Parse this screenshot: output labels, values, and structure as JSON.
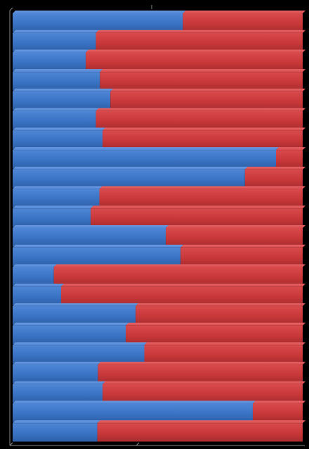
{
  "chart_data": {
    "type": "bar",
    "orientation": "horizontal",
    "stacked": "100%",
    "title": "",
    "xlabel": "",
    "ylabel": "",
    "xlim": [
      0,
      100
    ],
    "grid": false,
    "legend": "none",
    "series": [
      {
        "color": "#3a73c4",
        "values": [
          58.7,
          28.7,
          25.2,
          30.1,
          33.7,
          28.7,
          31.0,
          90.8,
          80.1,
          29.9,
          26.9,
          52.8,
          57.9,
          14.2,
          16.7,
          42.4,
          39.0,
          45.4,
          29.4,
          31.0,
          82.8,
          29.2
        ]
      },
      {
        "color": "#c8383a",
        "values": [
          41.3,
          71.3,
          74.8,
          69.9,
          66.3,
          71.3,
          69.0,
          9.2,
          19.9,
          70.1,
          73.1,
          47.2,
          42.1,
          85.8,
          83.3,
          57.6,
          61.0,
          54.6,
          70.6,
          69.0,
          17.2,
          70.8
        ]
      }
    ]
  }
}
